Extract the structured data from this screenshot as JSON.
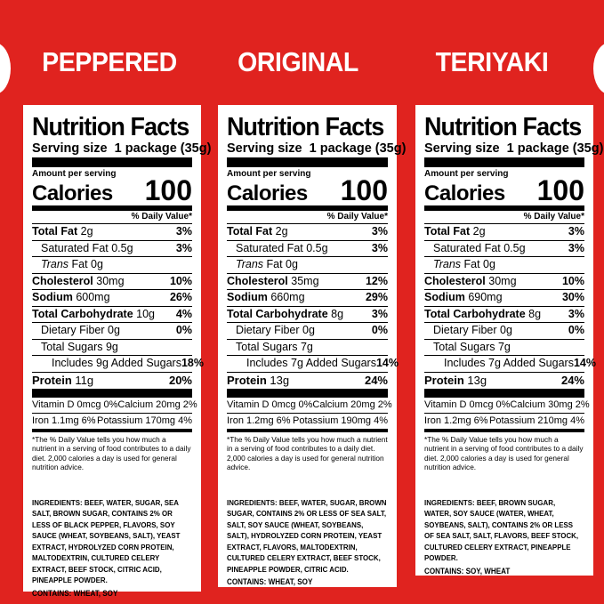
{
  "flavors": [
    {
      "name": "PEPPERED",
      "title": "Nutrition Facts",
      "serving_label": "Serving size",
      "serving_value": "1 package (35g)",
      "amount_label": "Amount per serving",
      "calories_label": "Calories",
      "calories_value": "100",
      "dv_header": "% Daily Value*",
      "total_fat": "Total Fat",
      "total_fat_amt": "2g",
      "total_fat_pct": "3%",
      "sat_fat": "Saturated Fat 0.5g",
      "sat_fat_pct": "3%",
      "trans_fat_a": "Trans",
      "trans_fat_b": "Fat 0g",
      "cholesterol": "Cholesterol",
      "cholesterol_amt": "30mg",
      "cholesterol_pct": "10%",
      "sodium": "Sodium",
      "sodium_amt": "600mg",
      "sodium_pct": "26%",
      "carb": "Total Carbohydrate",
      "carb_amt": "10g",
      "carb_pct": "4%",
      "fiber": "Dietary Fiber 0g",
      "fiber_pct": "0%",
      "sugars": "Total Sugars 9g",
      "added_sugars": "Includes 9g Added Sugars",
      "added_sugars_pct": "18%",
      "protein": "Protein",
      "protein_amt": "11g",
      "protein_pct": "20%",
      "vitd": "Vitamin D 0mcg 0%",
      "calcium": "Calcium 20mg 2%",
      "iron": "Iron 1.1mg 6%",
      "potassium": "Potassium 170mg 4%",
      "footnote": "*The % Daily Value tells you how much a nutrient in a serving of food contributes to a daily diet. 2,000 calories a day is used for general nutrition advice.",
      "ingredients": "INGREDIENTS: BEEF, WATER, SUGAR, SEA SALT, BROWN SUGAR, CONTAINS 2% OR LESS OF BLACK PEPPER, FLAVORS, SOY SAUCE (WHEAT, SOYBEANS, SALT), YEAST EXTRACT, HYDROLYZED CORN PROTEIN, MALTODEXTRIN, CULTURED CELERY EXTRACT, BEEF STOCK, CITRIC ACID, PINEAPPLE POWDER.",
      "contains": "CONTAINS: WHEAT, SOY"
    },
    {
      "name": "ORIGINAL",
      "title": "Nutrition Facts",
      "serving_label": "Serving size",
      "serving_value": "1 package (35g)",
      "amount_label": "Amount per serving",
      "calories_label": "Calories",
      "calories_value": "100",
      "dv_header": "% Daily Value*",
      "total_fat": "Total Fat",
      "total_fat_amt": "2g",
      "total_fat_pct": "3%",
      "sat_fat": "Saturated Fat 0.5g",
      "sat_fat_pct": "3%",
      "trans_fat_a": "Trans",
      "trans_fat_b": "Fat 0g",
      "cholesterol": "Cholesterol",
      "cholesterol_amt": "35mg",
      "cholesterol_pct": "12%",
      "sodium": "Sodium",
      "sodium_amt": "660mg",
      "sodium_pct": "29%",
      "carb": "Total Carbohydrate",
      "carb_amt": "8g",
      "carb_pct": "3%",
      "fiber": "Dietary Fiber 0g",
      "fiber_pct": "0%",
      "sugars": "Total Sugars 7g",
      "added_sugars": "Includes 7g Added Sugars",
      "added_sugars_pct": "14%",
      "protein": "Protein",
      "protein_amt": "13g",
      "protein_pct": "24%",
      "vitd": "Vitamin D 0mcg 0%",
      "calcium": "Calcium 20mg 2%",
      "iron": "Iron 1.2mg 6%",
      "potassium": "Potassium 190mg 4%",
      "footnote": "*The % Daily Value tells you how much a nutrient in a serving of food contributes to a daily diet. 2,000 calories a day is used for general nutrition advice.",
      "ingredients": "INGREDIENTS: BEEF, WATER, SUGAR, BROWN SUGAR, CONTAINS 2% OR LESS OF SEA SALT, SALT, SOY SAUCE (WHEAT, SOYBEANS, SALT), HYDROLYZED CORN PROTEIN, YEAST EXTRACT, FLAVORS, MALTODEXTRIN, CULTURED CELERY EXTRACT, BEEF STOCK, PINEAPPLE POWDER, CITRIC ACID.",
      "contains": "CONTAINS: WHEAT, SOY"
    },
    {
      "name": "TERIYAKI",
      "title": "Nutrition Facts",
      "serving_label": "Serving size",
      "serving_value": "1 package (35g)",
      "amount_label": "Amount per serving",
      "calories_label": "Calories",
      "calories_value": "100",
      "dv_header": "% Daily Value*",
      "total_fat": "Total Fat",
      "total_fat_amt": "2g",
      "total_fat_pct": "3%",
      "sat_fat": "Saturated Fat 0.5g",
      "sat_fat_pct": "3%",
      "trans_fat_a": "Trans",
      "trans_fat_b": "Fat 0g",
      "cholesterol": "Cholesterol",
      "cholesterol_amt": "30mg",
      "cholesterol_pct": "10%",
      "sodium": "Sodium",
      "sodium_amt": "690mg",
      "sodium_pct": "30%",
      "carb": "Total Carbohydrate",
      "carb_amt": "8g",
      "carb_pct": "3%",
      "fiber": "Dietary Fiber 0g",
      "fiber_pct": "0%",
      "sugars": "Total Sugars 7g",
      "added_sugars": "Includes 7g Added Sugars",
      "added_sugars_pct": "14%",
      "protein": "Protein",
      "protein_amt": "13g",
      "protein_pct": "24%",
      "vitd": "Vitamin D 0mcg 0%",
      "calcium": "Calcium 30mg 2%",
      "iron": "Iron 1.2mg 6%",
      "potassium": "Potassium 210mg 4%",
      "footnote": "*The % Daily Value tells you how much a nutrient in a serving of food contributes to a daily diet. 2,000 calories a day is used for general nutrition advice.",
      "ingredients": "INGREDIENTS: BEEF, BROWN SUGAR, WATER, SOY SAUCE (WATER, WHEAT, SOYBEANS, SALT), CONTAINS 2% OR LESS OF SEA SALT, SALT, FLAVORS, BEEF STOCK, CULTURED CELERY EXTRACT, PINEAPPLE POWDER.",
      "contains": "CONTAINS: SOY, WHEAT"
    }
  ],
  "colors": {
    "background": "#e0231f",
    "panel": "#ffffff",
    "ink": "#000000"
  }
}
